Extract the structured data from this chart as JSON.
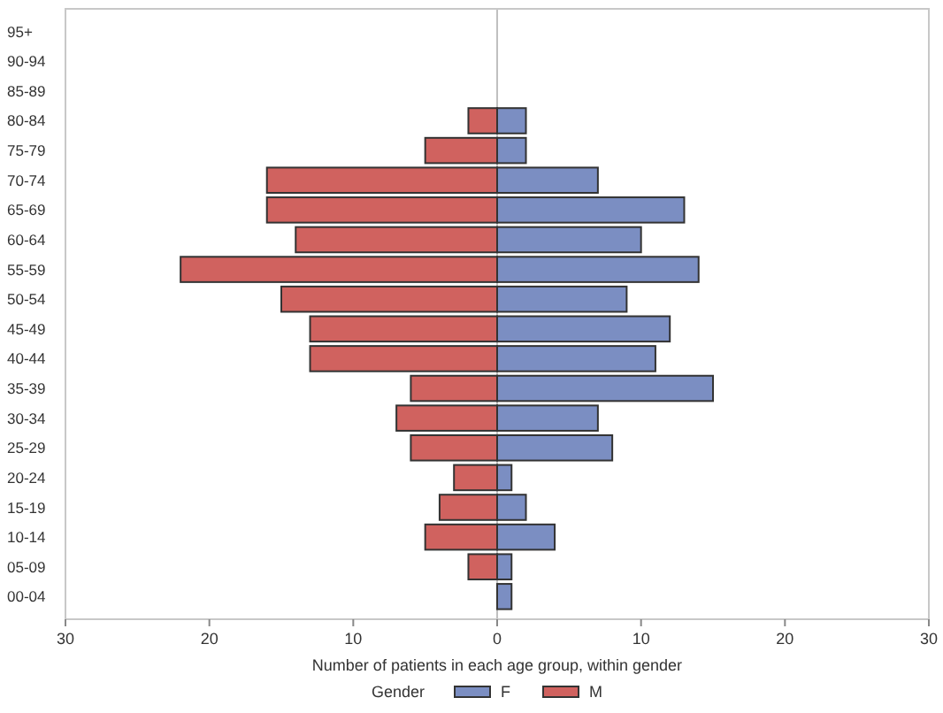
{
  "chart_data": {
    "type": "bar",
    "orientation": "horizontal",
    "stacked": true,
    "xlabel": "Number of patients in each age group, within gender",
    "legend_title": "Gender",
    "legend": "bottom",
    "grid": false,
    "categories": [
      "95+",
      "90-94",
      "85-89",
      "80-84",
      "75-79",
      "70-74",
      "65-69",
      "60-64",
      "55-59",
      "50-54",
      "45-49",
      "40-44",
      "35-39",
      "30-34",
      "25-29",
      "20-24",
      "15-19",
      "10-14",
      "05-09",
      "00-04"
    ],
    "xlim": [
      -30,
      30
    ],
    "xticks": [
      {
        "value": -30,
        "label": "30"
      },
      {
        "value": -20,
        "label": "20"
      },
      {
        "value": -10,
        "label": "10"
      },
      0,
      10,
      20,
      30
    ],
    "ref_lines": [
      {
        "axis": "x",
        "value": 0,
        "color": "#c0c0c0"
      }
    ],
    "series": [
      {
        "name": "F",
        "color": "#7b8ec2",
        "values": [
          null,
          null,
          null,
          2,
          2,
          7,
          13,
          10,
          14,
          9,
          12,
          11,
          15,
          7,
          8,
          1,
          2,
          4,
          1,
          1
        ]
      },
      {
        "name": "M",
        "color": "#d0625f",
        "values": [
          null,
          null,
          null,
          -2,
          -5,
          -16,
          -16,
          -14,
          -22,
          -15,
          -13,
          -13,
          -6,
          -7,
          -6,
          -3,
          -4,
          -5,
          -2,
          null
        ]
      }
    ]
  }
}
